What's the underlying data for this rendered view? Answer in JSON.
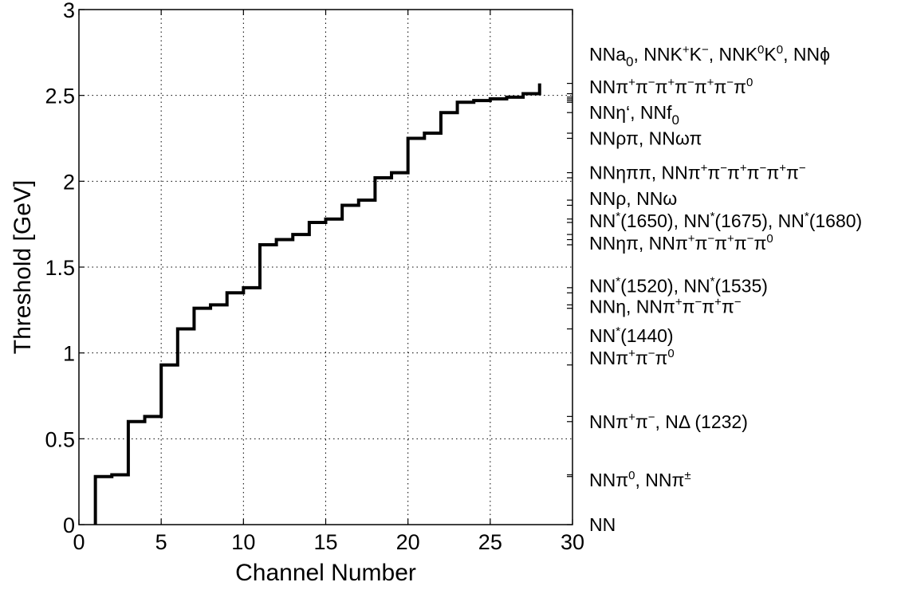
{
  "chart_data": {
    "type": "line",
    "step": true,
    "title": "",
    "xlabel": "Channel Number",
    "ylabel": "Threshold [GeV]",
    "xlim": [
      0,
      30
    ],
    "ylim": [
      0,
      3
    ],
    "grid": true,
    "x_ticks": [
      "0",
      "5",
      "10",
      "15",
      "20",
      "25",
      "30"
    ],
    "y_ticks": [
      "0",
      "0.5",
      "1",
      "1.5",
      "2",
      "2.5",
      "3"
    ],
    "x": [
      1,
      2,
      3,
      4,
      5,
      6,
      7,
      8,
      9,
      10,
      11,
      12,
      13,
      14,
      15,
      16,
      17,
      18,
      19,
      20,
      21,
      22,
      23,
      24,
      25,
      26,
      27,
      28
    ],
    "values": [
      0.28,
      0.29,
      0.6,
      0.63,
      0.93,
      1.14,
      1.26,
      1.28,
      1.35,
      1.38,
      1.63,
      1.66,
      1.69,
      1.76,
      1.78,
      1.86,
      1.89,
      2.02,
      2.05,
      2.25,
      2.28,
      2.4,
      2.46,
      2.47,
      2.48,
      2.49,
      2.51,
      2.57
    ],
    "right_ticks": [
      0,
      0.28,
      0.29,
      0.6,
      0.63,
      0.93,
      1.14,
      1.26,
      1.28,
      1.35,
      1.38,
      1.63,
      1.66,
      1.69,
      1.76,
      1.78,
      1.86,
      1.89,
      2.02,
      2.05,
      2.25,
      2.28,
      2.4,
      2.46,
      2.47,
      2.48,
      2.49,
      2.51,
      2.57
    ],
    "channel_labels": [
      {
        "y": 2.74,
        "parts": [
          [
            "NNa",
            ""
          ],
          [
            "0",
            "sub"
          ],
          [
            ", NNK",
            ""
          ],
          [
            "+",
            "sup"
          ],
          [
            "K",
            ""
          ],
          [
            "−",
            "sup"
          ],
          [
            ", NNK",
            ""
          ],
          [
            "0",
            "sup"
          ],
          [
            "K",
            ""
          ],
          [
            "0",
            "sup"
          ],
          [
            ", NNϕ",
            ""
          ]
        ]
      },
      {
        "y": 2.55,
        "parts": [
          [
            "NNπ",
            ""
          ],
          [
            "+",
            "sup"
          ],
          [
            "π",
            ""
          ],
          [
            "−",
            "sup"
          ],
          [
            "π",
            ""
          ],
          [
            "+",
            "sup"
          ],
          [
            "π",
            ""
          ],
          [
            "−",
            "sup"
          ],
          [
            "π",
            ""
          ],
          [
            "+",
            "sup"
          ],
          [
            "π",
            ""
          ],
          [
            "−",
            "sup"
          ],
          [
            "π",
            ""
          ],
          [
            "0",
            "sup"
          ]
        ]
      },
      {
        "y": 2.4,
        "parts": [
          [
            "NNη‘, NNf",
            ""
          ],
          [
            "0",
            "sub"
          ]
        ]
      },
      {
        "y": 2.25,
        "parts": [
          [
            "NNρπ, NNωπ",
            ""
          ]
        ]
      },
      {
        "y": 2.05,
        "parts": [
          [
            "NNηππ, NNπ",
            ""
          ],
          [
            "+",
            "sup"
          ],
          [
            "π",
            ""
          ],
          [
            "−",
            "sup"
          ],
          [
            "π",
            ""
          ],
          [
            "+",
            "sup"
          ],
          [
            "π",
            ""
          ],
          [
            "−",
            "sup"
          ],
          [
            "π",
            ""
          ],
          [
            "+",
            "sup"
          ],
          [
            "π",
            ""
          ],
          [
            "−",
            "sup"
          ]
        ]
      },
      {
        "y": 1.9,
        "parts": [
          [
            "NNρ, NNω",
            ""
          ]
        ]
      },
      {
        "y": 1.77,
        "parts": [
          [
            "NN",
            ""
          ],
          [
            "*",
            "sup"
          ],
          [
            "(1650), NN",
            ""
          ],
          [
            "*",
            "sup"
          ],
          [
            "(1675), NN",
            ""
          ],
          [
            "*",
            "sup"
          ],
          [
            "(1680)",
            ""
          ]
        ]
      },
      {
        "y": 1.64,
        "parts": [
          [
            "NNηπ, NNπ",
            ""
          ],
          [
            "+",
            "sup"
          ],
          [
            "π",
            ""
          ],
          [
            "−",
            "sup"
          ],
          [
            "π",
            ""
          ],
          [
            "+",
            "sup"
          ],
          [
            "π",
            ""
          ],
          [
            "−",
            "sup"
          ],
          [
            "π",
            ""
          ],
          [
            "0",
            "sup"
          ]
        ]
      },
      {
        "y": 1.39,
        "parts": [
          [
            "NN",
            ""
          ],
          [
            "*",
            "sup"
          ],
          [
            "(1520), NN",
            ""
          ],
          [
            "*",
            "sup"
          ],
          [
            "(1535)",
            ""
          ]
        ]
      },
      {
        "y": 1.27,
        "parts": [
          [
            "NNη, NNπ",
            ""
          ],
          [
            "+",
            "sup"
          ],
          [
            "π",
            ""
          ],
          [
            "−",
            "sup"
          ],
          [
            "π",
            ""
          ],
          [
            "+",
            "sup"
          ],
          [
            "π",
            ""
          ],
          [
            "−",
            "sup"
          ]
        ]
      },
      {
        "y": 1.1,
        "parts": [
          [
            "NN",
            ""
          ],
          [
            "*",
            "sup"
          ],
          [
            "(1440)",
            ""
          ]
        ]
      },
      {
        "y": 0.97,
        "parts": [
          [
            "NNπ",
            ""
          ],
          [
            "+",
            "sup"
          ],
          [
            "π",
            ""
          ],
          [
            "−",
            "sup"
          ],
          [
            "π",
            ""
          ],
          [
            "0",
            "sup"
          ]
        ]
      },
      {
        "y": 0.6,
        "parts": [
          [
            "NNπ",
            ""
          ],
          [
            "+",
            "sup"
          ],
          [
            "π",
            ""
          ],
          [
            "−",
            "sup"
          ],
          [
            ",  NΔ (1232)",
            ""
          ]
        ]
      },
      {
        "y": 0.26,
        "parts": [
          [
            "NNπ",
            ""
          ],
          [
            "0",
            "sup"
          ],
          [
            ", NNπ",
            ""
          ],
          [
            "±",
            "sup"
          ]
        ]
      },
      {
        "y": 0.0,
        "parts": [
          [
            "NN",
            ""
          ]
        ]
      }
    ]
  }
}
